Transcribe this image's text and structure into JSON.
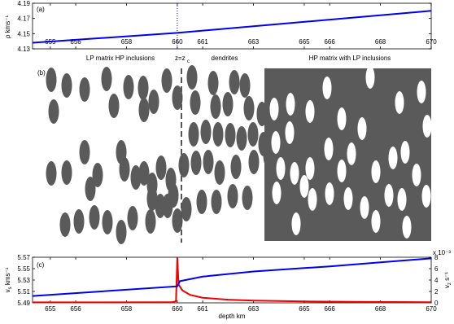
{
  "chart_data": [
    {
      "type": "line",
      "panel_label": "(a)",
      "ylabel": "ρ kms⁻¹",
      "xlim": [
        654.3,
        670
      ],
      "ylim": [
        4.13,
        4.19
      ],
      "x_ticks": [
        655,
        656,
        658,
        660,
        661,
        663,
        665,
        666,
        668,
        670
      ],
      "y_ticks": [
        4.13,
        4.15,
        4.17,
        4.19
      ],
      "series": [
        {
          "color": "#0000ee",
          "points": [
            [
              654.3,
              4.138
            ],
            [
              660,
              4.151
            ],
            [
              670,
              4.18
            ]
          ]
        }
      ],
      "marker_x": 660,
      "region_labels": [
        "LP matrix HP inclusions",
        "z=z",
        "c",
        "dendrites",
        "HP matrix with LP inclusions"
      ]
    },
    {
      "type": "other",
      "panel_label": "(b)",
      "colors": {
        "phase": "#5a5a5a",
        "background": "#ffffff"
      }
    },
    {
      "type": "line",
      "panel_label": "(c)",
      "xlabel": "depth km",
      "ylabel_left": "v",
      "ylabel_left_sub": "s",
      "ylabel_left_unit": "kms⁻¹",
      "ylabel_right": "v",
      "ylabel_right_sub": "z",
      "ylabel_right_unit": "s⁻¹",
      "exponent_label": "x 10⁻³",
      "xlim": [
        654.3,
        670
      ],
      "ylim_left": [
        5.49,
        5.57
      ],
      "ylim_right": [
        0,
        8
      ],
      "x_ticks": [
        655,
        656,
        658,
        660,
        661,
        663,
        665,
        666,
        668,
        670
      ],
      "y_ticks_left": [
        5.49,
        5.51,
        5.53,
        5.55,
        5.57
      ],
      "y_ticks_right": [
        0,
        2,
        4,
        6,
        8
      ],
      "series": [
        {
          "axis": "left",
          "color": "#0000ee",
          "points": [
            [
              654.3,
              5.502
            ],
            [
              660,
              5.519
            ],
            [
              660.1,
              5.528
            ],
            [
              661,
              5.536
            ],
            [
              663,
              5.545
            ],
            [
              665,
              5.551
            ],
            [
              666,
              5.554
            ],
            [
              668,
              5.561
            ],
            [
              670,
              5.568
            ]
          ]
        },
        {
          "axis": "right",
          "color": "#ee0000",
          "points": [
            [
              654.3,
              0.08
            ],
            [
              659.8,
              0.1
            ],
            [
              659.95,
              0.3
            ],
            [
              660,
              7.9
            ],
            [
              660.05,
              3.2
            ],
            [
              660.2,
              2.2
            ],
            [
              660.5,
              1.4
            ],
            [
              661,
              0.9
            ],
            [
              662,
              0.55
            ],
            [
              663,
              0.4
            ],
            [
              665,
              0.25
            ],
            [
              667,
              0.18
            ],
            [
              670,
              0.12
            ]
          ]
        }
      ]
    }
  ]
}
